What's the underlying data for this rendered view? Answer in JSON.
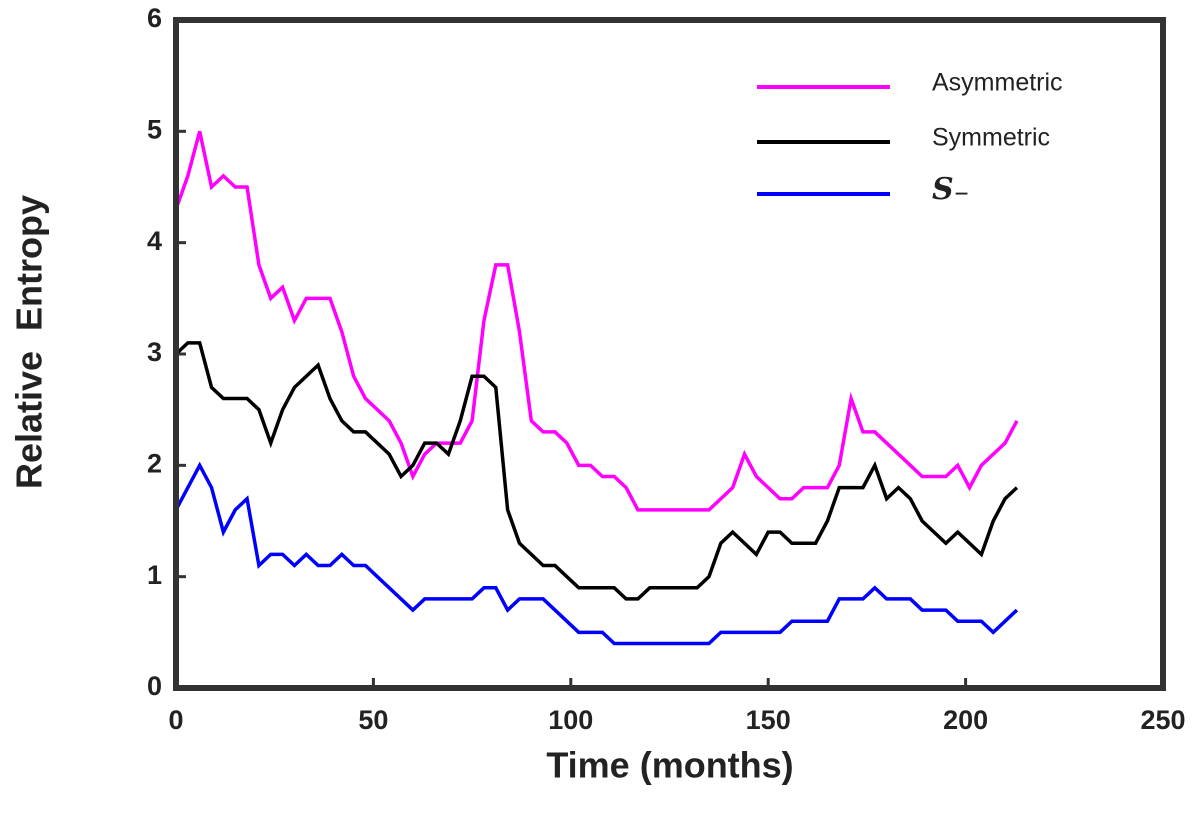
{
  "chart_data": {
    "type": "line",
    "xlabel": "Time (months)",
    "ylabel": "Relative  Entropy",
    "x": [
      0,
      3,
      6,
      9,
      12,
      15,
      18,
      21,
      24,
      27,
      30,
      33,
      36,
      39,
      42,
      45,
      48,
      51,
      54,
      57,
      60,
      63,
      66,
      69,
      72,
      75,
      78,
      81,
      84,
      87,
      90,
      93,
      96,
      99,
      102,
      105,
      108,
      111,
      114,
      117,
      120,
      123,
      126,
      129,
      132,
      135,
      138,
      141,
      144,
      147,
      150,
      153,
      156,
      159,
      162,
      165,
      168,
      171,
      174,
      177,
      180,
      183,
      186,
      189,
      192,
      195,
      198,
      201,
      204,
      207,
      210,
      213
    ],
    "series": [
      {
        "name": "Asymmetric",
        "color": "#ff00ff",
        "values": [
          4.3,
          4.6,
          5.0,
          4.5,
          4.6,
          4.5,
          4.5,
          3.8,
          3.5,
          3.6,
          3.3,
          3.5,
          3.5,
          3.5,
          3.2,
          2.8,
          2.6,
          2.5,
          2.4,
          2.2,
          1.9,
          2.1,
          2.2,
          2.2,
          2.2,
          2.4,
          3.3,
          3.8,
          3.8,
          3.2,
          2.4,
          2.3,
          2.3,
          2.2,
          2.0,
          2.0,
          1.9,
          1.9,
          1.8,
          1.6,
          1.6,
          1.6,
          1.6,
          1.6,
          1.6,
          1.6,
          1.7,
          1.8,
          2.1,
          1.9,
          1.8,
          1.7,
          1.7,
          1.8,
          1.8,
          1.8,
          2.0,
          2.6,
          2.3,
          2.3,
          2.2,
          2.1,
          2.0,
          1.9,
          1.9,
          1.9,
          2.0,
          1.8,
          2.0,
          2.1,
          2.2,
          2.4
        ]
      },
      {
        "name": "Symmetric",
        "color": "#000000",
        "values": [
          3.0,
          3.1,
          3.1,
          2.7,
          2.6,
          2.6,
          2.6,
          2.5,
          2.2,
          2.5,
          2.7,
          2.8,
          2.9,
          2.6,
          2.4,
          2.3,
          2.3,
          2.2,
          2.1,
          1.9,
          2.0,
          2.2,
          2.2,
          2.1,
          2.4,
          2.8,
          2.8,
          2.7,
          1.6,
          1.3,
          1.2,
          1.1,
          1.1,
          1.0,
          0.9,
          0.9,
          0.9,
          0.9,
          0.8,
          0.8,
          0.9,
          0.9,
          0.9,
          0.9,
          0.9,
          1.0,
          1.3,
          1.4,
          1.3,
          1.2,
          1.4,
          1.4,
          1.3,
          1.3,
          1.3,
          1.5,
          1.8,
          1.8,
          1.8,
          2.0,
          1.7,
          1.8,
          1.7,
          1.5,
          1.4,
          1.3,
          1.4,
          1.3,
          1.2,
          1.5,
          1.7,
          1.8
        ]
      },
      {
        "name": "S₋",
        "color": "#0000ff",
        "values": [
          1.6,
          1.8,
          2.0,
          1.8,
          1.4,
          1.6,
          1.7,
          1.1,
          1.2,
          1.2,
          1.1,
          1.2,
          1.1,
          1.1,
          1.2,
          1.1,
          1.1,
          1.0,
          0.9,
          0.8,
          0.7,
          0.8,
          0.8,
          0.8,
          0.8,
          0.8,
          0.9,
          0.9,
          0.7,
          0.8,
          0.8,
          0.8,
          0.7,
          0.6,
          0.5,
          0.5,
          0.5,
          0.4,
          0.4,
          0.4,
          0.4,
          0.4,
          0.4,
          0.4,
          0.4,
          0.4,
          0.5,
          0.5,
          0.5,
          0.5,
          0.5,
          0.5,
          0.6,
          0.6,
          0.6,
          0.6,
          0.8,
          0.8,
          0.8,
          0.9,
          0.8,
          0.8,
          0.8,
          0.7,
          0.7,
          0.7,
          0.6,
          0.6,
          0.6,
          0.5,
          0.6,
          0.7
        ]
      }
    ],
    "xlim": [
      0,
      250
    ],
    "xticks": [
      0,
      50,
      100,
      150,
      200,
      250
    ],
    "ylim": [
      0,
      6
    ],
    "yticks": [
      0,
      1,
      2,
      3,
      4,
      5,
      6
    ],
    "legend": "upper right"
  }
}
